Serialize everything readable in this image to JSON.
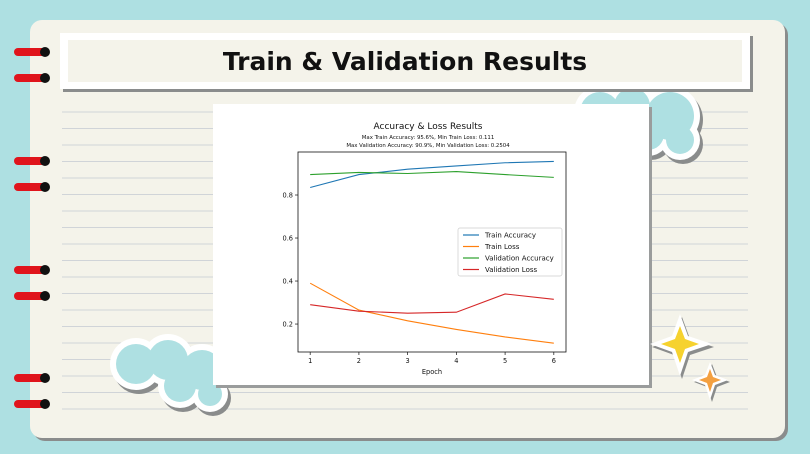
{
  "slide": {
    "title": "Train & Validation Results"
  },
  "colors": {
    "background": "#aee0e2",
    "paper": "#f4f3ea",
    "rings": "#e0141c",
    "cloud": "#aee0e2",
    "star_yellow": "#f6d22e",
    "star_orange": "#f4a040"
  },
  "decorations": {
    "icons": [
      "cloud-icon",
      "cloud-icon",
      "star-icon",
      "star-icon",
      "binder-ring-icon"
    ]
  },
  "chart_data": {
    "type": "line",
    "title": "Accuracy & Loss Results",
    "subtitle_lines": [
      "Max Train Accuracy: 95.6%, Min Train Loss: 0.111",
      "Max Validation Accuracy: 90.9%, Min Validation Loss: 0.2504"
    ],
    "xlabel": "Epoch",
    "ylabel": "",
    "x": [
      1,
      2,
      3,
      4,
      5,
      6
    ],
    "xlim": [
      0.75,
      6.25
    ],
    "ylim": [
      0.07,
      1.0
    ],
    "yticks": [
      0.2,
      0.4,
      0.6,
      0.8
    ],
    "xticks": [
      1,
      2,
      3,
      4,
      5,
      6
    ],
    "grid": false,
    "legend_position": "center-right",
    "series": [
      {
        "name": "Train Accuracy",
        "color": "#1f77b4",
        "values": [
          0.835,
          0.895,
          0.92,
          0.935,
          0.95,
          0.956
        ]
      },
      {
        "name": "Train Loss",
        "color": "#ff7f0e",
        "values": [
          0.39,
          0.265,
          0.215,
          0.175,
          0.14,
          0.111
        ]
      },
      {
        "name": "Validation Accuracy",
        "color": "#2ca02c",
        "values": [
          0.895,
          0.905,
          0.9,
          0.909,
          0.895,
          0.882
        ]
      },
      {
        "name": "Validation Loss",
        "color": "#d62728",
        "values": [
          0.29,
          0.26,
          0.2504,
          0.255,
          0.34,
          0.315
        ]
      }
    ]
  }
}
